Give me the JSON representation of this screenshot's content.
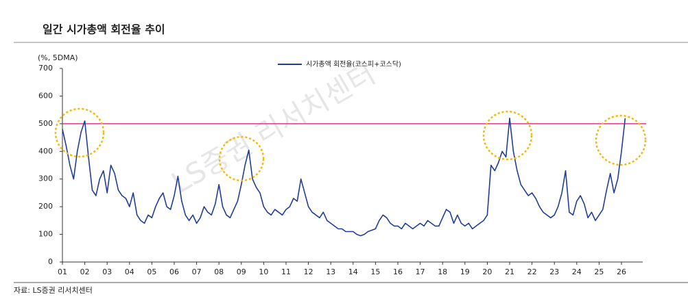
{
  "chart_data": {
    "type": "line",
    "title": "일간 시가총액 회전율 추이",
    "y_label": "(%, 5DMA)",
    "source": "자료: LS증권 리서치센터",
    "watermark": "LS증권 리서치센터",
    "categories": [
      "01",
      null,
      null,
      null,
      null,
      null,
      "02",
      null,
      null,
      null,
      null,
      null,
      "03",
      null,
      null,
      null,
      null,
      null,
      "04",
      null,
      null,
      null,
      null,
      null,
      "05",
      null,
      null,
      null,
      null,
      null,
      "06",
      null,
      null,
      null,
      null,
      null,
      "07",
      null,
      null,
      null,
      null,
      null,
      "08",
      null,
      null,
      null,
      null,
      null,
      "09",
      null,
      null,
      null,
      null,
      null,
      "10",
      null,
      null,
      null,
      null,
      null,
      "11",
      null,
      null,
      null,
      null,
      null,
      "12",
      null,
      null,
      null,
      null,
      null,
      "13",
      null,
      null,
      null,
      null,
      null,
      "14",
      null,
      null,
      null,
      null,
      null,
      "15",
      null,
      null,
      null,
      null,
      null,
      "16",
      null,
      null,
      null,
      null,
      null,
      "17",
      null,
      null,
      null,
      null,
      null,
      "18",
      null,
      null,
      null,
      null,
      null,
      "19",
      null,
      null,
      null,
      null,
      null,
      "20",
      null,
      null,
      null,
      null,
      null,
      "21",
      null,
      null,
      null,
      null,
      null,
      "22",
      null,
      null,
      null,
      null,
      null,
      "23",
      null,
      null,
      null,
      null,
      null,
      "24",
      null,
      null,
      null,
      null,
      null,
      "25",
      null,
      null,
      null,
      null,
      null,
      "26",
      null
    ],
    "series": [
      {
        "name": "시가총액 회전율(코스피+코스닥)",
        "color": "#1f3c99",
        "values": [
          480,
          420,
          350,
          300,
          400,
          470,
          510,
          380,
          260,
          240,
          300,
          330,
          250,
          350,
          320,
          260,
          240,
          230,
          200,
          250,
          170,
          150,
          140,
          170,
          160,
          200,
          230,
          250,
          200,
          190,
          240,
          310,
          220,
          170,
          150,
          170,
          140,
          160,
          200,
          180,
          170,
          210,
          280,
          200,
          170,
          160,
          190,
          220,
          280,
          350,
          405,
          300,
          270,
          250,
          200,
          180,
          170,
          190,
          180,
          170,
          190,
          200,
          230,
          220,
          300,
          250,
          200,
          180,
          170,
          160,
          180,
          150,
          140,
          130,
          120,
          120,
          110,
          110,
          110,
          100,
          95,
          100,
          110,
          115,
          120,
          150,
          170,
          160,
          140,
          130,
          130,
          120,
          140,
          130,
          120,
          130,
          140,
          130,
          150,
          140,
          130,
          130,
          160,
          190,
          180,
          140,
          170,
          140,
          130,
          140,
          120,
          130,
          140,
          150,
          170,
          350,
          330,
          360,
          400,
          380,
          520,
          400,
          330,
          280,
          260,
          240,
          250,
          230,
          200,
          180,
          170,
          160,
          170,
          200,
          250,
          330,
          180,
          170,
          220,
          240,
          210,
          160,
          180,
          150,
          170,
          190,
          260,
          320,
          250,
          300,
          400,
          520
        ]
      }
    ],
    "hline": {
      "value": 500,
      "color": "#e8308c"
    },
    "ylim": [
      0,
      700
    ],
    "yticks": [
      0,
      100,
      200,
      300,
      400,
      500,
      600,
      700
    ]
  }
}
